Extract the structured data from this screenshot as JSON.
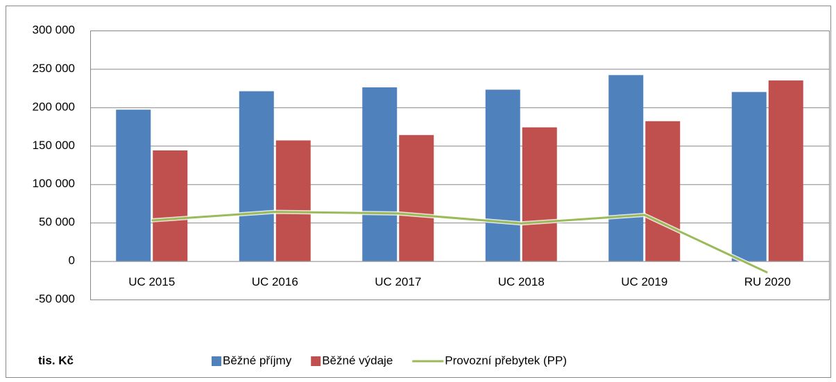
{
  "chart_data": {
    "type": "bar_line",
    "categories": [
      "UC 2015",
      "UC 2016",
      "UC 2017",
      "UC 2018",
      "UC 2019",
      "RU 2020"
    ],
    "series": [
      {
        "name": "Běžné příjmy",
        "color": "#4f81bd",
        "type": "bar",
        "values": [
          197000,
          221000,
          226000,
          223000,
          242000,
          220000
        ]
      },
      {
        "name": "Běžné výdaje",
        "color": "#c0504d",
        "type": "bar",
        "values": [
          144000,
          157000,
          164000,
          174000,
          182000,
          235000
        ]
      },
      {
        "name": "Provozní přebytek (PP)",
        "color": "#9bbb59",
        "type": "line",
        "values": [
          53000,
          64000,
          62000,
          49000,
          60000,
          -15000
        ]
      }
    ],
    "ylim": [
      -50000,
      300000
    ],
    "yticks": [
      {
        "value": -50000,
        "label": "-50 000"
      },
      0,
      {
        "value": 50000,
        "label": "50 000"
      },
      {
        "value": 100000,
        "label": "100 000"
      },
      {
        "value": 150000,
        "label": "150 000"
      },
      {
        "value": 200000,
        "label": "200 000"
      },
      {
        "value": 250000,
        "label": "250 000"
      },
      {
        "value": 300000,
        "label": "300 000"
      }
    ],
    "grid": true,
    "legend": "bottom",
    "unit_label": "tis. Kč"
  }
}
